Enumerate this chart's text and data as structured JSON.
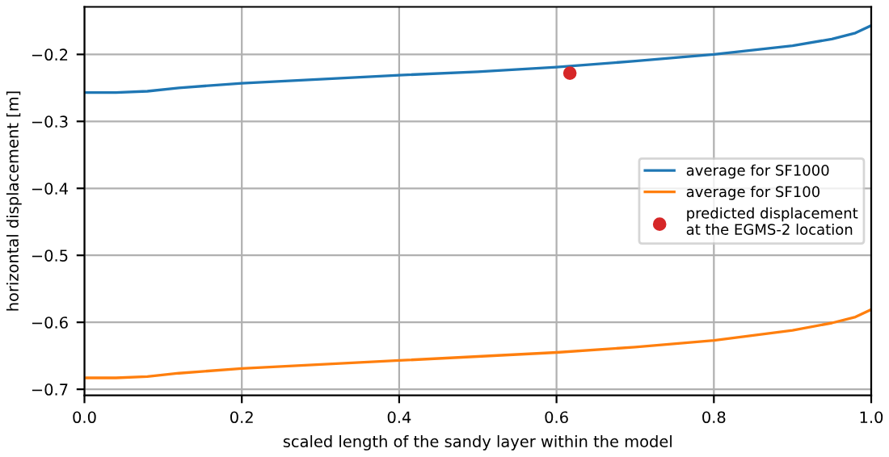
{
  "chart_data": {
    "type": "line",
    "xlabel": "scaled length of the sandy layer within the model",
    "ylabel": "horizontal displacement [m]",
    "x": [
      0,
      0.04,
      0.08,
      0.12,
      0.2,
      0.3,
      0.4,
      0.5,
      0.6,
      0.7,
      0.8,
      0.9,
      0.95,
      0.98,
      1.0
    ],
    "series": [
      {
        "name": "average for SF1000",
        "color": "#1f77b4",
        "values": [
          -0.257,
          -0.257,
          -0.255,
          -0.25,
          -0.243,
          -0.237,
          -0.231,
          -0.226,
          -0.219,
          -0.21,
          -0.2,
          -0.187,
          -0.177,
          -0.168,
          -0.157
        ]
      },
      {
        "name": "average for SF100",
        "color": "#ff7f0e",
        "values": [
          -0.683,
          -0.683,
          -0.681,
          -0.676,
          -0.669,
          -0.663,
          -0.657,
          -0.651,
          -0.645,
          -0.637,
          -0.627,
          -0.612,
          -0.601,
          -0.592,
          -0.581
        ]
      },
      {
        "name": "predicted displacement\nat the EGMS-2 location",
        "type": "scatter",
        "marker": "circle",
        "color": "#d62728",
        "x": [
          0.617
        ],
        "values": [
          -0.228
        ]
      }
    ],
    "xlim": [
      0,
      1
    ],
    "ylim": [
      -0.709,
      -0.129
    ],
    "xticks": [
      {
        "value": 0,
        "label": "0.0"
      },
      0.2,
      0.4,
      0.6,
      0.8,
      {
        "value": 1,
        "label": "1.0"
      }
    ],
    "yticks": [
      {
        "value": -0.7,
        "label": "−0.7"
      },
      {
        "value": -0.6,
        "label": "−0.6"
      },
      {
        "value": -0.5,
        "label": "−0.5"
      },
      {
        "value": -0.4,
        "label": "−0.4"
      },
      {
        "value": -0.3,
        "label": "−0.3"
      },
      {
        "value": -0.2,
        "label": "−0.2"
      }
    ],
    "grid": true,
    "legend": "center right",
    "marker": "none"
  }
}
